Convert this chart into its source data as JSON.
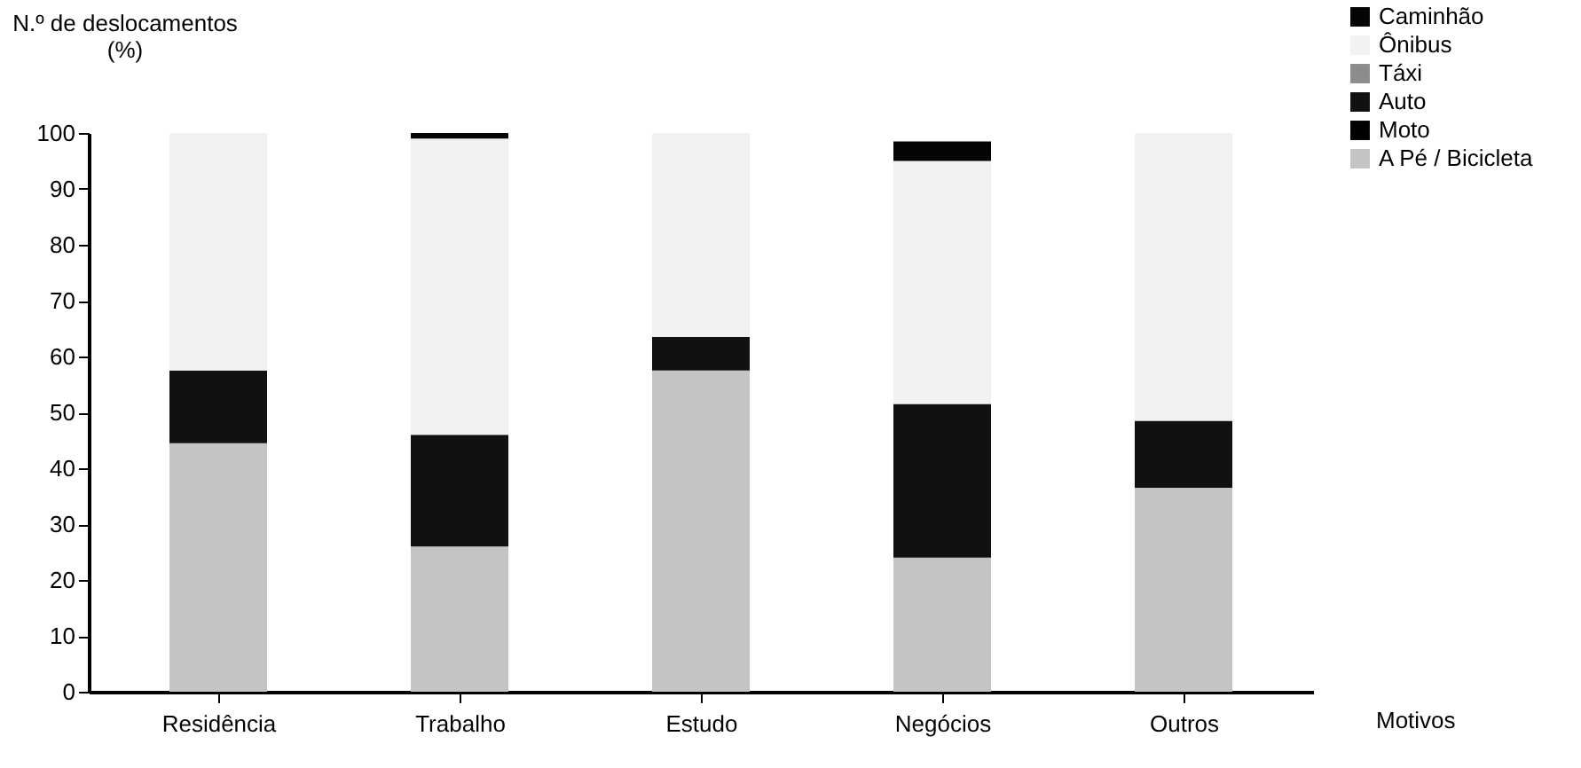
{
  "chart_data": {
    "type": "bar",
    "stacked": true,
    "xlabel": "Motivos",
    "ylabel": "N.º de deslocamentos\n(%)",
    "categories": [
      "Residência",
      "Trabalho",
      "Estudo",
      "Negócios",
      "Outros"
    ],
    "series": [
      {
        "name": "A Pé / Bicicleta",
        "color": "#c4c4c4",
        "values": [
          44.5,
          26,
          57.5,
          24,
          36.5
        ]
      },
      {
        "name": "Moto",
        "color": "#000000",
        "values": [
          0,
          0,
          0,
          0,
          0
        ]
      },
      {
        "name": "Auto",
        "color": "#111111",
        "values": [
          13,
          20,
          6,
          27.5,
          12
        ]
      },
      {
        "name": "Táxi",
        "color": "#8c8c8c",
        "values": [
          0,
          0,
          0,
          0,
          0
        ]
      },
      {
        "name": "Ônibus",
        "color": "#f2f2f2",
        "values": [
          42.5,
          53,
          36.5,
          43.5,
          51.5
        ]
      },
      {
        "name": "Caminhão",
        "color": "#050505",
        "values": [
          0,
          1,
          0,
          3.5,
          0
        ]
      }
    ],
    "ylim": [
      0,
      100
    ],
    "yticks": [
      0,
      10,
      20,
      30,
      40,
      50,
      60,
      70,
      80,
      90,
      100
    ],
    "grid": false,
    "legend": "top right"
  }
}
